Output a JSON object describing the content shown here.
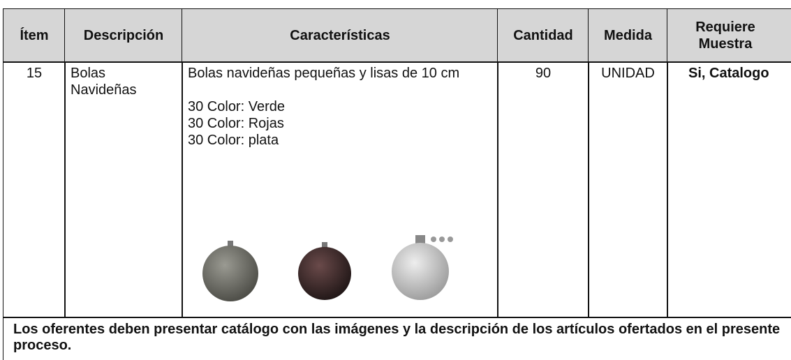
{
  "table": {
    "header": [
      "Ítem",
      "Descripción",
      "Características",
      "Cantidad",
      "Medida",
      "Requiere Muestra"
    ],
    "rows": [
      {
        "item": "15",
        "description": "Bolas Navideñas",
        "features": {
          "summary": "Bolas navideñas pequeñas y lisas de 10 cm",
          "colors": [
            "30 Color: Verde",
            "30 Color: Rojas",
            "30 Color: plata"
          ]
        },
        "quantity": "90",
        "unit": "UNIDAD",
        "sample": "Si, Catalogo"
      }
    ],
    "note": "Los oferentes deben presentar catálogo con las imágenes y la descripción de los artículos ofertados en el presente proceso."
  }
}
